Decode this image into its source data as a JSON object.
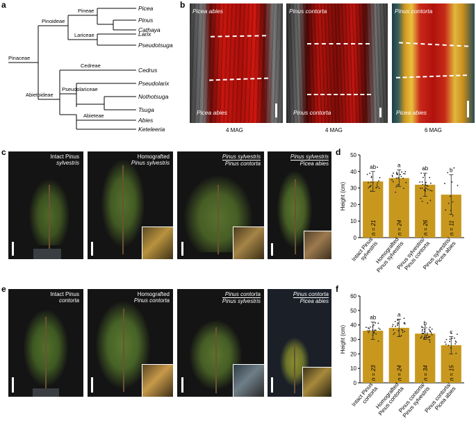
{
  "panels": {
    "a": "a",
    "b": "b",
    "c": "c",
    "d": "d",
    "e": "e",
    "f": "f"
  },
  "tree": {
    "taxa": [
      "Picea",
      "Pinus",
      "Cathaya",
      "Larix",
      "Pseudotsuga",
      "Cedrus",
      "Pseudolarix",
      "Nothotsuga",
      "Tsuga",
      "Abies",
      "Keteleeria"
    ],
    "nodes": {
      "pinaceae": "Pinaceae",
      "pinoideae": "Pinoideae",
      "pineae": "Pineae",
      "lariceae": "Lariceae",
      "abietoideae": "Abietoideae",
      "cedreae": "Cedreae",
      "pseudolariceae": "Pseudolariceae",
      "abieteae": "Abieteae"
    }
  },
  "micro": [
    {
      "top": "Picea abies",
      "bottom": "Picea abies",
      "mag": "4 MAG"
    },
    {
      "top": "Pinus contorta",
      "bottom": "Pinus contorta",
      "mag": "4 MAG"
    },
    {
      "top": "Pinus contorta",
      "bottom": "Picea abies",
      "mag": "6 MAG"
    }
  ],
  "row_c": [
    {
      "line1": "Intact Pinus",
      "line2": "sylvestris"
    },
    {
      "line1": "Homografted",
      "line2": "Pinus sylvestris"
    },
    {
      "line1": "Pinus sylvestris",
      "line2": "Pinus contorta"
    },
    {
      "line1": "Pinus sylvestris",
      "line2": "Picea abies"
    }
  ],
  "row_e": [
    {
      "line1": "Intact Pinus",
      "line2": "contorta"
    },
    {
      "line1": "Homografted",
      "line2": "Pinus contorta"
    },
    {
      "line1": "Pinus contorta",
      "line2": "Pinus sylvestris"
    },
    {
      "line1": "Pinus contorta",
      "line2": "Picea abies"
    }
  ],
  "colors": {
    "bar": "#c8981e",
    "scion_bg": "#151515",
    "micro_red": "#c0140e"
  },
  "chart_data": [
    {
      "type": "bar",
      "ylabel": "Height (cm)",
      "ylim": [
        0,
        50
      ],
      "yticks": [
        0,
        10,
        20,
        30,
        40,
        50
      ],
      "categories": [
        "Intact Pinus sylvestris",
        "Homografted Pinus sylvestris",
        "Pinus sylvestris/ Pinus contorta",
        "Pinus sylvestris/ Picea abies"
      ],
      "category_lines": [
        [
          "Intact Pinus",
          "sylvestris"
        ],
        [
          "Homografted",
          "Pinus sylvestris"
        ],
        [
          "Pinus sylvestris/",
          "Pinus contorta"
        ],
        [
          "Pinus sylvestris/",
          "Picea abies"
        ]
      ],
      "values": [
        34,
        36,
        32,
        26
      ],
      "errors": [
        6,
        5,
        7,
        12
      ],
      "letters": [
        "ab",
        "a",
        "ab",
        "b"
      ],
      "n": [
        "n = 21",
        "n = 24",
        "n = 26",
        "n = 11"
      ]
    },
    {
      "type": "bar",
      "ylabel": "Height (cm)",
      "ylim": [
        0,
        60
      ],
      "yticks": [
        0,
        10,
        20,
        30,
        40,
        50,
        60
      ],
      "categories": [
        "Intact Pinus contorta",
        "Homografted Pinus contorta",
        "Pinus contorta/ Pinus sylvestris",
        "Pinus contorta/ Picea abies"
      ],
      "category_lines": [
        [
          "Intact Pinus",
          "contorta"
        ],
        [
          "Homografted",
          "Pinus contorta"
        ],
        [
          "Pinus contorta/",
          "Pinus sylvestris"
        ],
        [
          "Pinus contorta/",
          "Picea abies"
        ]
      ],
      "values": [
        36,
        38,
        34,
        26
      ],
      "errors": [
        6,
        6,
        4,
        6
      ],
      "letters": [
        "ab",
        "a",
        "b",
        "c"
      ],
      "n": [
        "n = 23",
        "n = 24",
        "n = 34",
        "n = 15"
      ]
    }
  ]
}
